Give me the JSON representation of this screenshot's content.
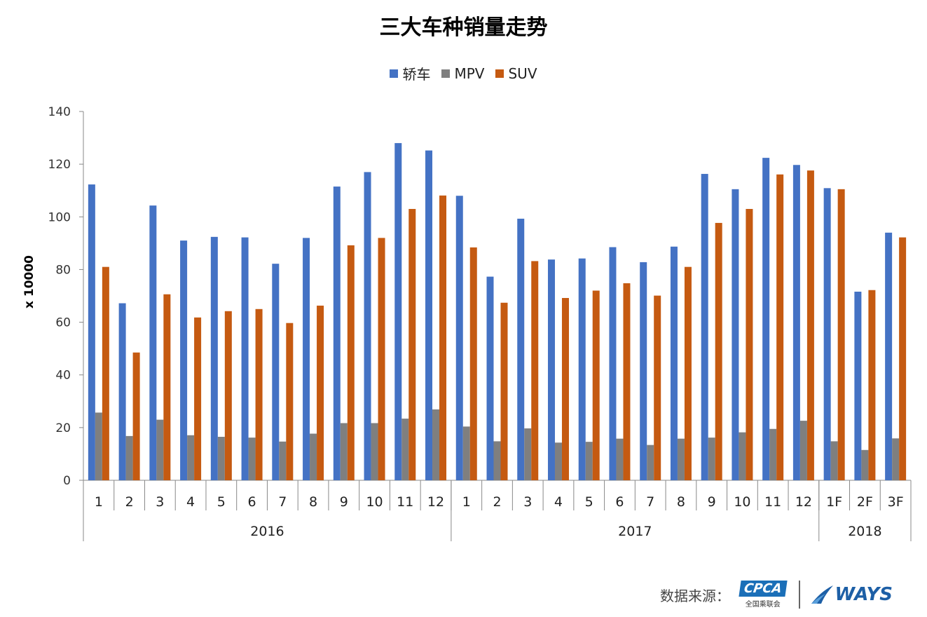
{
  "chart_data": {
    "type": "bar",
    "title": "三大车种销量走势",
    "ylabel": "x 10000",
    "ylim": [
      0,
      140
    ],
    "yticks": [
      0,
      20,
      40,
      60,
      80,
      100,
      120,
      140
    ],
    "legend_position": "top",
    "grid": false,
    "categories": [
      "1",
      "2",
      "3",
      "4",
      "5",
      "6",
      "7",
      "8",
      "9",
      "10",
      "11",
      "12",
      "1",
      "2",
      "3",
      "4",
      "5",
      "6",
      "7",
      "8",
      "9",
      "10",
      "11",
      "12",
      "1F",
      "2F",
      "3F"
    ],
    "groups": [
      {
        "label": "2016",
        "count": 12
      },
      {
        "label": "2017",
        "count": 12
      },
      {
        "label": "2018",
        "count": 3
      }
    ],
    "series": [
      {
        "name": "轿车",
        "color": "#4472C4",
        "values": [
          112.3,
          67.2,
          104.3,
          91.0,
          92.4,
          92.2,
          82.2,
          92.0,
          111.5,
          117.0,
          128.0,
          125.2,
          108.0,
          77.3,
          99.3,
          83.8,
          84.2,
          88.5,
          82.8,
          88.7,
          116.3,
          110.5,
          122.4,
          119.7,
          110.9,
          71.6,
          94.0
        ]
      },
      {
        "name": "MPV",
        "color": "#7F7F7F",
        "values": [
          25.7,
          16.8,
          23.0,
          17.1,
          16.5,
          16.2,
          14.7,
          17.7,
          21.7,
          21.7,
          23.4,
          26.9,
          20.4,
          14.8,
          19.7,
          14.3,
          14.6,
          15.8,
          13.4,
          15.8,
          16.2,
          18.2,
          19.5,
          22.6,
          14.8,
          11.5,
          15.9
        ]
      },
      {
        "name": "SUV",
        "color": "#C55A11",
        "values": [
          81.0,
          48.5,
          70.6,
          61.8,
          64.2,
          65.0,
          59.7,
          66.3,
          89.2,
          92.0,
          103.0,
          108.1,
          88.4,
          67.4,
          83.2,
          69.2,
          72.0,
          74.8,
          70.1,
          81.0,
          97.7,
          103.0,
          116.1,
          117.6,
          110.5,
          72.2,
          92.2
        ]
      }
    ]
  },
  "footer": {
    "source_label": "数据来源：",
    "cpca_logo_text": "CPCA",
    "cpca_logo_sub": "全国乘联会",
    "ways_logo_text": "WAYS"
  }
}
